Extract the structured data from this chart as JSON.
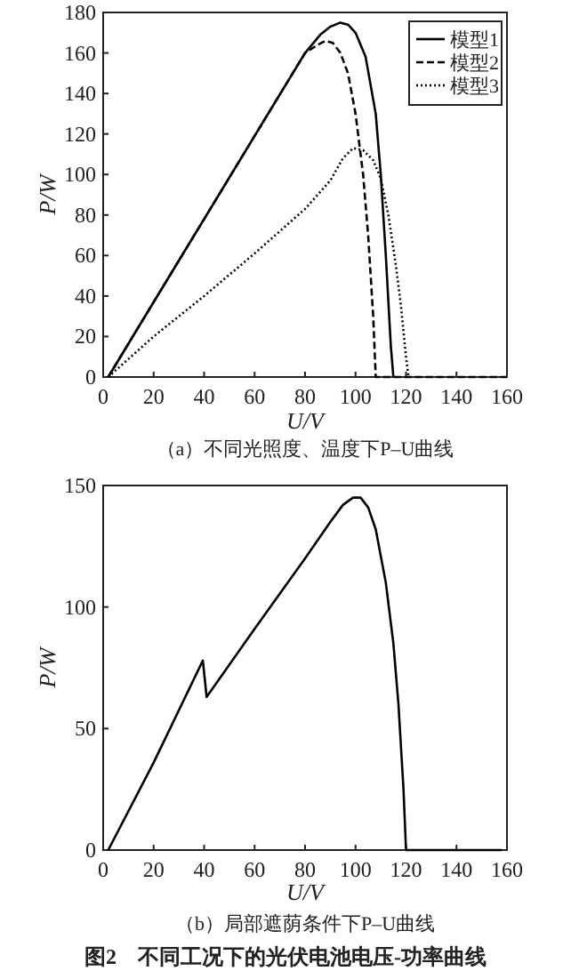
{
  "chart_data": [
    {
      "type": "line",
      "title": "（a）不同光照度、温度下P–U曲线",
      "xlabel": "U/V",
      "ylabel": "P/W",
      "xlim": [
        0,
        160
      ],
      "ylim": [
        0,
        180
      ],
      "xticks": [
        0,
        20,
        40,
        60,
        80,
        100,
        120,
        140,
        160
      ],
      "yticks": [
        0,
        20,
        40,
        60,
        80,
        100,
        120,
        140,
        160,
        180
      ],
      "legend": "top right",
      "series": [
        {
          "name": "模型1",
          "color": "#000000",
          "line_style": "solid",
          "x": [
            2,
            20,
            40,
            60,
            80,
            86,
            90,
            94,
            97,
            100,
            104,
            108,
            110,
            112,
            114,
            115
          ],
          "values": [
            0,
            37,
            78,
            119,
            160,
            169,
            173,
            175,
            174,
            170,
            158,
            130,
            100,
            60,
            15,
            0
          ]
        },
        {
          "name": "模型2",
          "color": "#000000",
          "line_style": "dashed",
          "x": [
            2,
            20,
            40,
            60,
            80,
            85,
            88,
            91,
            94,
            97,
            100,
            103,
            105,
            107,
            108,
            160
          ],
          "values": [
            0,
            37,
            78,
            119,
            160,
            164,
            166,
            165,
            160,
            150,
            130,
            100,
            70,
            30,
            0,
            0
          ]
        },
        {
          "name": "模型3",
          "color": "#000000",
          "line_style": "dotted",
          "x": [
            2,
            20,
            40,
            60,
            80,
            90,
            95,
            99,
            103,
            107,
            110,
            113,
            116,
            118,
            120,
            121
          ],
          "values": [
            0,
            20,
            40,
            61,
            83,
            97,
            108,
            113,
            112,
            107,
            98,
            80,
            55,
            35,
            10,
            0
          ]
        }
      ]
    },
    {
      "type": "line",
      "title": "（b）局部遮荫条件下P–U曲线",
      "xlabel": "U/V",
      "ylabel": "P/W",
      "xlim": [
        0,
        160
      ],
      "ylim": [
        0,
        150
      ],
      "xticks": [
        0,
        20,
        40,
        60,
        80,
        100,
        120,
        140,
        160
      ],
      "yticks": [
        0,
        50,
        100,
        150
      ],
      "annotations": [
        "图2　不同工况下的光伏电池电压-功率曲线"
      ],
      "series": [
        {
          "color": "#000000",
          "line_style": "solid",
          "x": [
            2,
            20,
            39.5,
            41,
            60,
            80,
            90,
            95,
            99,
            102,
            105,
            108,
            112,
            115,
            117,
            119,
            120,
            158
          ],
          "values": [
            0,
            36,
            78,
            63,
            91,
            120,
            135,
            142,
            145,
            145,
            141,
            132,
            110,
            85,
            60,
            25,
            0,
            0
          ]
        }
      ]
    }
  ]
}
